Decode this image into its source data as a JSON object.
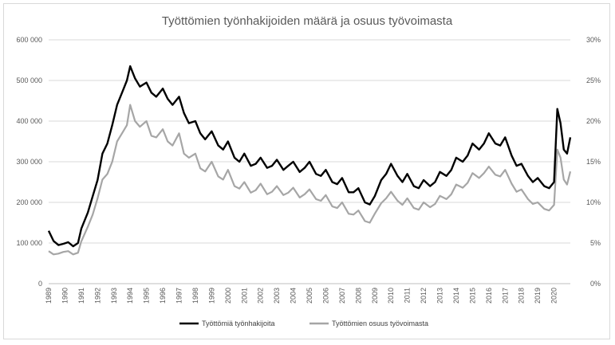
{
  "chart_data": {
    "type": "line",
    "title": "Työttömien työnhakijoiden määrä ja osuus työvoimasta",
    "x_categories": [
      "1989",
      "1990",
      "1991",
      "1992",
      "1993",
      "1994",
      "1995",
      "1996",
      "1997",
      "1998",
      "1999",
      "2000",
      "2001",
      "2002",
      "2003",
      "2004",
      "2005",
      "2006",
      "2007",
      "2008",
      "2009",
      "2010",
      "2011",
      "2012",
      "2013",
      "2014",
      "2015",
      "2016",
      "2017",
      "2018",
      "2019",
      "2020"
    ],
    "left_axis": {
      "min": 0,
      "max": 600000,
      "ticks": [
        "0",
        "100 000",
        "200 000",
        "300 000",
        "400 000",
        "500 000",
        "600 000"
      ]
    },
    "right_axis": {
      "min": 0,
      "max": 30,
      "ticks": [
        "0%",
        "5%",
        "10%",
        "15%",
        "20%",
        "25%",
        "30%"
      ]
    },
    "grid": true,
    "legend_position": "bottom",
    "series": [
      {
        "name": "Työttömiä työnhakijoita",
        "axis": "left",
        "color": "#000000",
        "points": [
          [
            1989.0,
            130000
          ],
          [
            1989.3,
            105000
          ],
          [
            1989.6,
            95000
          ],
          [
            1989.9,
            98000
          ],
          [
            1990.2,
            102000
          ],
          [
            1990.5,
            92000
          ],
          [
            1990.8,
            100000
          ],
          [
            1991.0,
            135000
          ],
          [
            1991.4,
            175000
          ],
          [
            1991.7,
            215000
          ],
          [
            1992.0,
            255000
          ],
          [
            1992.3,
            320000
          ],
          [
            1992.6,
            345000
          ],
          [
            1992.9,
            390000
          ],
          [
            1993.2,
            440000
          ],
          [
            1993.5,
            470000
          ],
          [
            1993.8,
            500000
          ],
          [
            1994.0,
            535000
          ],
          [
            1994.3,
            505000
          ],
          [
            1994.6,
            485000
          ],
          [
            1995.0,
            495000
          ],
          [
            1995.3,
            470000
          ],
          [
            1995.6,
            460000
          ],
          [
            1996.0,
            480000
          ],
          [
            1996.3,
            455000
          ],
          [
            1996.6,
            440000
          ],
          [
            1997.0,
            460000
          ],
          [
            1997.3,
            420000
          ],
          [
            1997.6,
            395000
          ],
          [
            1998.0,
            400000
          ],
          [
            1998.3,
            370000
          ],
          [
            1998.6,
            355000
          ],
          [
            1999.0,
            375000
          ],
          [
            1999.4,
            340000
          ],
          [
            1999.7,
            330000
          ],
          [
            2000.0,
            350000
          ],
          [
            2000.4,
            310000
          ],
          [
            2000.7,
            300000
          ],
          [
            2001.0,
            320000
          ],
          [
            2001.4,
            290000
          ],
          [
            2001.7,
            295000
          ],
          [
            2002.0,
            310000
          ],
          [
            2002.4,
            285000
          ],
          [
            2002.7,
            290000
          ],
          [
            2003.0,
            305000
          ],
          [
            2003.4,
            280000
          ],
          [
            2003.7,
            290000
          ],
          [
            2004.0,
            300000
          ],
          [
            2004.4,
            275000
          ],
          [
            2004.7,
            285000
          ],
          [
            2005.0,
            300000
          ],
          [
            2005.4,
            270000
          ],
          [
            2005.7,
            265000
          ],
          [
            2006.0,
            280000
          ],
          [
            2006.4,
            250000
          ],
          [
            2006.7,
            245000
          ],
          [
            2007.0,
            260000
          ],
          [
            2007.4,
            225000
          ],
          [
            2007.7,
            225000
          ],
          [
            2008.0,
            235000
          ],
          [
            2008.4,
            200000
          ],
          [
            2008.7,
            195000
          ],
          [
            2009.0,
            215000
          ],
          [
            2009.4,
            255000
          ],
          [
            2009.7,
            270000
          ],
          [
            2010.0,
            295000
          ],
          [
            2010.4,
            265000
          ],
          [
            2010.7,
            250000
          ],
          [
            2011.0,
            270000
          ],
          [
            2011.4,
            240000
          ],
          [
            2011.7,
            235000
          ],
          [
            2012.0,
            255000
          ],
          [
            2012.4,
            240000
          ],
          [
            2012.7,
            250000
          ],
          [
            2013.0,
            275000
          ],
          [
            2013.4,
            265000
          ],
          [
            2013.7,
            280000
          ],
          [
            2014.0,
            310000
          ],
          [
            2014.4,
            300000
          ],
          [
            2014.7,
            315000
          ],
          [
            2015.0,
            345000
          ],
          [
            2015.4,
            330000
          ],
          [
            2015.7,
            345000
          ],
          [
            2016.0,
            370000
          ],
          [
            2016.4,
            345000
          ],
          [
            2016.7,
            340000
          ],
          [
            2017.0,
            360000
          ],
          [
            2017.4,
            315000
          ],
          [
            2017.7,
            290000
          ],
          [
            2018.0,
            295000
          ],
          [
            2018.4,
            265000
          ],
          [
            2018.7,
            250000
          ],
          [
            2019.0,
            260000
          ],
          [
            2019.4,
            240000
          ],
          [
            2019.7,
            235000
          ],
          [
            2020.0,
            250000
          ],
          [
            2020.2,
            430000
          ],
          [
            2020.4,
            395000
          ],
          [
            2020.6,
            330000
          ],
          [
            2020.8,
            320000
          ],
          [
            2021.0,
            360000
          ]
        ]
      },
      {
        "name": "Työttömien osuus työvoimasta",
        "axis": "right",
        "color": "#a6a6a6",
        "points": [
          [
            1989.0,
            4.0
          ],
          [
            1989.3,
            3.6
          ],
          [
            1989.6,
            3.7
          ],
          [
            1989.9,
            3.9
          ],
          [
            1990.2,
            4.0
          ],
          [
            1990.5,
            3.6
          ],
          [
            1990.8,
            3.8
          ],
          [
            1991.0,
            5.2
          ],
          [
            1991.4,
            7.0
          ],
          [
            1991.7,
            8.5
          ],
          [
            1992.0,
            10.5
          ],
          [
            1992.3,
            12.8
          ],
          [
            1992.6,
            13.5
          ],
          [
            1992.9,
            15.0
          ],
          [
            1993.2,
            17.5
          ],
          [
            1993.5,
            18.5
          ],
          [
            1993.8,
            19.5
          ],
          [
            1994.0,
            22.0
          ],
          [
            1994.3,
            20.0
          ],
          [
            1994.6,
            19.3
          ],
          [
            1995.0,
            20.0
          ],
          [
            1995.3,
            18.2
          ],
          [
            1995.6,
            18.0
          ],
          [
            1996.0,
            19.0
          ],
          [
            1996.3,
            17.5
          ],
          [
            1996.6,
            17.0
          ],
          [
            1997.0,
            18.5
          ],
          [
            1997.3,
            16.0
          ],
          [
            1997.6,
            15.5
          ],
          [
            1998.0,
            16.0
          ],
          [
            1998.3,
            14.2
          ],
          [
            1998.6,
            13.8
          ],
          [
            1999.0,
            15.0
          ],
          [
            1999.4,
            13.2
          ],
          [
            1999.7,
            12.8
          ],
          [
            2000.0,
            14.0
          ],
          [
            2000.4,
            12.0
          ],
          [
            2000.7,
            11.7
          ],
          [
            2001.0,
            12.5
          ],
          [
            2001.4,
            11.2
          ],
          [
            2001.7,
            11.5
          ],
          [
            2002.0,
            12.3
          ],
          [
            2002.4,
            11.0
          ],
          [
            2002.7,
            11.3
          ],
          [
            2003.0,
            12.0
          ],
          [
            2003.4,
            10.9
          ],
          [
            2003.7,
            11.2
          ],
          [
            2004.0,
            11.8
          ],
          [
            2004.4,
            10.6
          ],
          [
            2004.7,
            11.0
          ],
          [
            2005.0,
            11.6
          ],
          [
            2005.4,
            10.4
          ],
          [
            2005.7,
            10.2
          ],
          [
            2006.0,
            10.9
          ],
          [
            2006.4,
            9.5
          ],
          [
            2006.7,
            9.3
          ],
          [
            2007.0,
            10.0
          ],
          [
            2007.4,
            8.6
          ],
          [
            2007.7,
            8.5
          ],
          [
            2008.0,
            9.0
          ],
          [
            2008.4,
            7.7
          ],
          [
            2008.7,
            7.5
          ],
          [
            2009.0,
            8.6
          ],
          [
            2009.4,
            9.9
          ],
          [
            2009.7,
            10.5
          ],
          [
            2010.0,
            11.3
          ],
          [
            2010.4,
            10.2
          ],
          [
            2010.7,
            9.7
          ],
          [
            2011.0,
            10.5
          ],
          [
            2011.4,
            9.3
          ],
          [
            2011.7,
            9.1
          ],
          [
            2012.0,
            10.0
          ],
          [
            2012.4,
            9.4
          ],
          [
            2012.7,
            9.8
          ],
          [
            2013.0,
            10.8
          ],
          [
            2013.4,
            10.4
          ],
          [
            2013.7,
            11.0
          ],
          [
            2014.0,
            12.2
          ],
          [
            2014.4,
            11.8
          ],
          [
            2014.7,
            12.4
          ],
          [
            2015.0,
            13.6
          ],
          [
            2015.4,
            13.0
          ],
          [
            2015.7,
            13.6
          ],
          [
            2016.0,
            14.4
          ],
          [
            2016.4,
            13.4
          ],
          [
            2016.7,
            13.2
          ],
          [
            2017.0,
            14.0
          ],
          [
            2017.4,
            12.3
          ],
          [
            2017.7,
            11.3
          ],
          [
            2018.0,
            11.6
          ],
          [
            2018.4,
            10.4
          ],
          [
            2018.7,
            9.8
          ],
          [
            2019.0,
            10.0
          ],
          [
            2019.4,
            9.2
          ],
          [
            2019.7,
            9.0
          ],
          [
            2020.0,
            9.7
          ],
          [
            2020.2,
            16.5
          ],
          [
            2020.4,
            15.5
          ],
          [
            2020.6,
            12.8
          ],
          [
            2020.8,
            12.2
          ],
          [
            2021.0,
            13.8
          ]
        ]
      }
    ]
  }
}
